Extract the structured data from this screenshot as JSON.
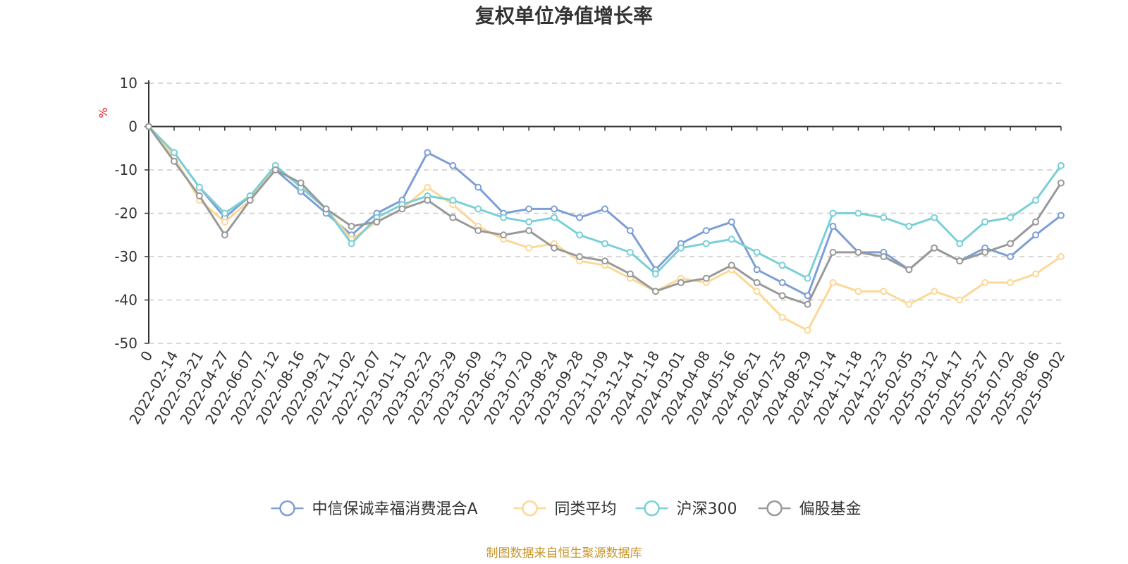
{
  "chart_data": {
    "type": "line",
    "title": "复权单位净值增长率",
    "ylabel": "%",
    "ylim": [
      -50,
      10
    ],
    "yticks": [
      10,
      0,
      -10,
      -20,
      -30,
      -40,
      -50
    ],
    "grid": true,
    "legend_position": "bottom",
    "source": "制图数据来自恒生聚源数据库",
    "x": [
      "0",
      "2022-02-14",
      "2022-03-21",
      "2022-04-27",
      "2022-06-07",
      "2022-07-12",
      "2022-08-16",
      "2022-09-21",
      "2022-11-02",
      "2022-12-07",
      "2023-01-11",
      "2023-02-22",
      "2023-03-29",
      "2023-05-09",
      "2023-06-13",
      "2023-07-20",
      "2023-08-24",
      "2023-09-28",
      "2023-11-09",
      "2023-12-14",
      "2024-01-18",
      "2024-03-01",
      "2024-04-08",
      "2024-05-16",
      "2024-06-21",
      "2024-07-25",
      "2024-08-29",
      "2024-10-14",
      "2024-11-18",
      "2024-12-23",
      "2025-02-05",
      "2025-03-12",
      "2025-04-17",
      "2025-05-27",
      "2025-07-02",
      "2025-08-06",
      "2025-09-02"
    ],
    "series": [
      {
        "name": "中信保诚幸福消费混合A",
        "color": "#7d9fd6",
        "values": [
          0,
          -6,
          -14,
          -21,
          -16,
          -10,
          -15,
          -20,
          -25,
          -20,
          -17,
          -6,
          -9,
          -14,
          -20,
          -19,
          -19,
          -21,
          -19,
          -24,
          -33,
          -27,
          -24,
          -22,
          -33,
          -36,
          -39,
          -23,
          -29,
          -29,
          -33,
          -28,
          -31,
          -28,
          -30,
          -25,
          -20.5
        ]
      },
      {
        "name": "同类平均",
        "color": "#fcd896",
        "values": [
          0,
          -7,
          -17,
          -22,
          -17,
          -9,
          -14,
          -19,
          -26,
          -22,
          -19,
          -14,
          -18,
          -23,
          -26,
          -28,
          -27,
          -31,
          -32,
          -35,
          -38,
          -35,
          -36,
          -33,
          -38,
          -44,
          -47,
          -36,
          -38,
          -38,
          -41,
          -38,
          -40,
          -36,
          -36,
          -34,
          -30
        ]
      },
      {
        "name": "沪深300",
        "color": "#79d0d6",
        "values": [
          0,
          -6,
          -14,
          -20,
          -16,
          -9,
          -14,
          -19,
          -27,
          -21,
          -18,
          -16,
          -17,
          -19,
          -21,
          -22,
          -21,
          -25,
          -27,
          -29,
          -34,
          -28,
          -27,
          -26,
          -29,
          -32,
          -35,
          -20,
          -20,
          -21,
          -23,
          -21,
          -27,
          -22,
          -21,
          -17,
          -9
        ]
      },
      {
        "name": "偏股基金",
        "color": "#999999",
        "values": [
          0,
          -8,
          -16,
          -25,
          -17,
          -10,
          -13,
          -19,
          -23,
          -22,
          -19,
          -17,
          -21,
          -24,
          -25,
          -24,
          -28,
          -30,
          -31,
          -34,
          -38,
          -36,
          -35,
          -32,
          -36,
          -39,
          -41,
          -29,
          -29,
          -30,
          -33,
          -28,
          -31,
          -29,
          -27,
          -22,
          -13
        ]
      }
    ]
  }
}
